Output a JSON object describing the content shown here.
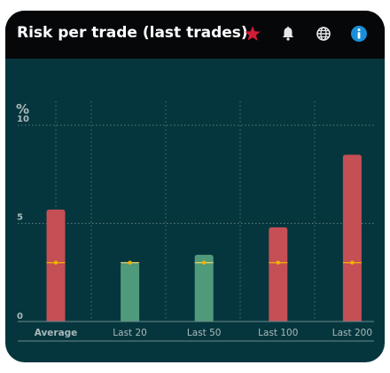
{
  "header": {
    "title": "Risk per trade (last trades)",
    "icons": [
      "star-icon",
      "bell-icon",
      "globe-icon",
      "info-icon"
    ]
  },
  "colors": {
    "background": "#06363d",
    "header": "#050709",
    "bar_red": "#c44f55",
    "bar_green": "#4f9a7a",
    "marker": "#f0b400",
    "star": "#d11d35",
    "info": "#1a8fd8"
  },
  "chart_data": {
    "type": "bar",
    "unit_label": "%",
    "categories": [
      "Average",
      "Last 20",
      "Last 50",
      "Last 100",
      "Last 200"
    ],
    "values": [
      5.7,
      3.0,
      3.4,
      4.8,
      8.5
    ],
    "bar_colors": [
      "#c44f55",
      "#4f9a7a",
      "#4f9a7a",
      "#c44f55",
      "#c44f55"
    ],
    "reference_values": [
      3.0,
      3.0,
      3.0,
      3.0,
      3.0
    ],
    "y_ticks": [
      "0",
      "5",
      "10"
    ],
    "y_tick_values": [
      0,
      5,
      10
    ],
    "ylim": [
      0,
      10.5
    ],
    "grid": true,
    "bold_category": "Average"
  }
}
